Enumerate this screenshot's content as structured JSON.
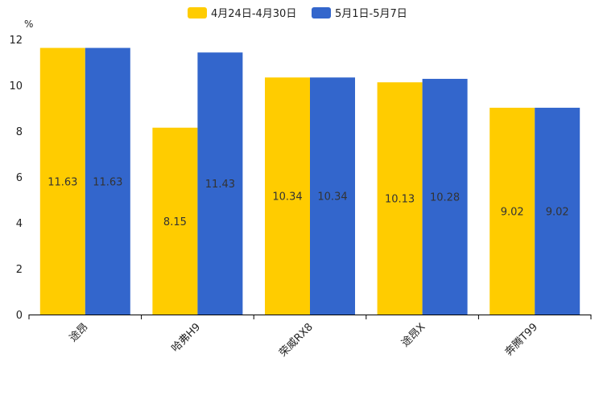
{
  "chart_data": {
    "type": "bar",
    "unit": "%",
    "categories": [
      "途昂",
      "哈弗H9",
      "荣威RX8",
      "途昂X",
      "奔腾T99"
    ],
    "series": [
      {
        "name": "4月24日-4月30日",
        "color": "#FFCC00",
        "values": [
          11.63,
          8.15,
          10.34,
          10.13,
          9.02
        ],
        "labels": [
          "11.63",
          "8.15",
          "10.34",
          "10.13",
          "9.02"
        ]
      },
      {
        "name": "5月1日-5月7日",
        "color": "#3366CC",
        "values": [
          11.63,
          11.43,
          10.34,
          10.28,
          9.02
        ],
        "labels": [
          "11.63",
          "11.43",
          "10.34",
          "10.28",
          "9.02"
        ]
      }
    ],
    "ylim": [
      0,
      12
    ],
    "yticks": [
      0,
      2,
      4,
      6,
      8,
      10,
      12
    ],
    "legend_position": "top-center",
    "grid": false
  }
}
